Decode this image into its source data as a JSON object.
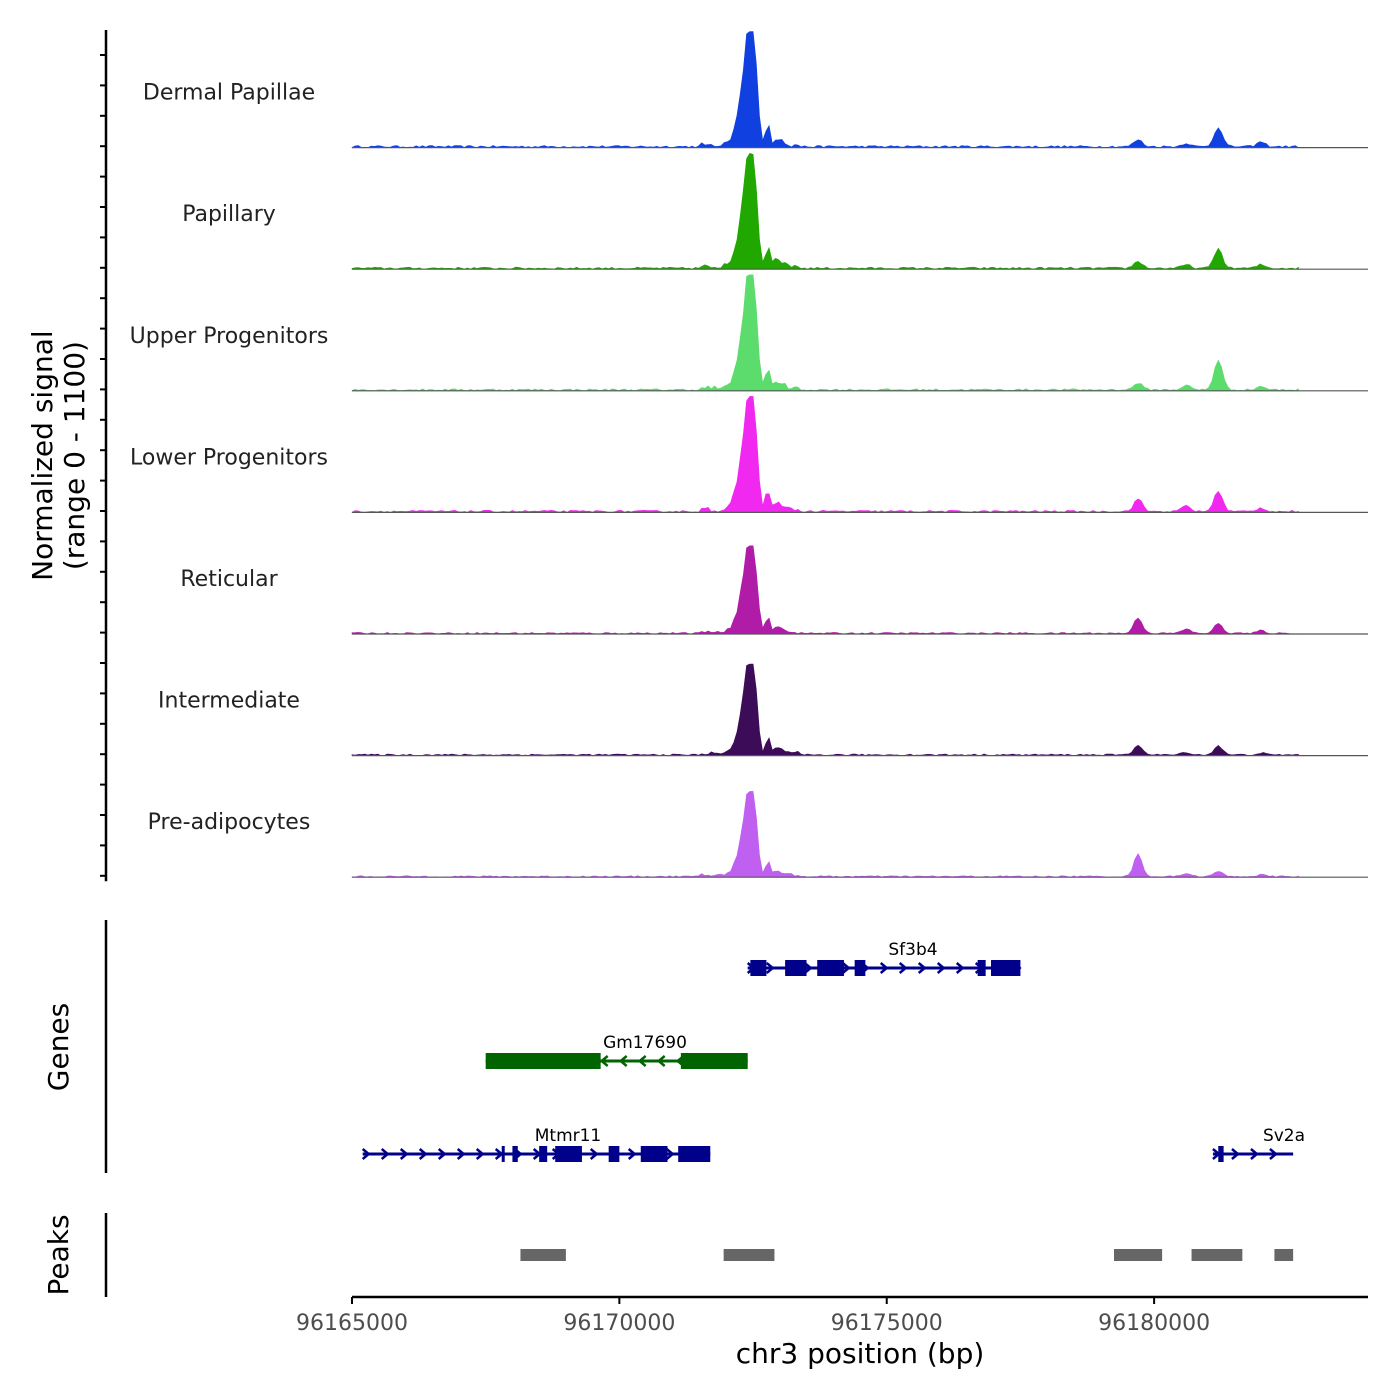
{
  "chart_data": {
    "type": "area",
    "title": "",
    "xlabel": "chr3 position (bp)",
    "ylabel_line1": "Normalized signal",
    "ylabel_line2": "(range 0 - 1100)",
    "xlim": [
      96165000,
      96184000
    ],
    "ylim": [
      0,
      1100
    ],
    "x_ticks": [
      96165000,
      96170000,
      96175000,
      96180000
    ],
    "x_tick_labels": [
      "96165000",
      "96170000",
      "96175000",
      "96180000"
    ],
    "peak_profile": [
      {
        "x": 96171900,
        "y": 0
      },
      {
        "x": 96172000,
        "y": 20
      },
      {
        "x": 96172100,
        "y": 60
      },
      {
        "x": 96172200,
        "y": 240
      },
      {
        "x": 96172300,
        "y": 560
      },
      {
        "x": 96172380,
        "y": 950
      },
      {
        "x": 96172450,
        "y": 1000
      },
      {
        "x": 96172520,
        "y": 980
      },
      {
        "x": 96172600,
        "y": 380
      },
      {
        "x": 96172650,
        "y": 40
      },
      {
        "x": 96172700,
        "y": 30
      },
      {
        "x": 96172780,
        "y": 200
      },
      {
        "x": 96172850,
        "y": 30
      },
      {
        "x": 96172950,
        "y": 60
      },
      {
        "x": 96173100,
        "y": 20
      },
      {
        "x": 96173200,
        "y": 0
      }
    ],
    "series": [
      {
        "name": "Dermal Papillae",
        "color": "#1040e0",
        "max": 1000,
        "minor_peaks": [
          {
            "x": 96179700,
            "h": 60
          },
          {
            "x": 96180600,
            "h": 30
          },
          {
            "x": 96181200,
            "h": 170
          },
          {
            "x": 96182000,
            "h": 40
          }
        ]
      },
      {
        "name": "Papillary",
        "color": "#20a800",
        "max": 1000,
        "minor_peaks": [
          {
            "x": 96179700,
            "h": 60
          },
          {
            "x": 96180600,
            "h": 30
          },
          {
            "x": 96181200,
            "h": 170
          },
          {
            "x": 96182000,
            "h": 30
          }
        ]
      },
      {
        "name": "Upper Progenitors",
        "color": "#5cdc6c",
        "max": 1000,
        "minor_peaks": [
          {
            "x": 96179700,
            "h": 60
          },
          {
            "x": 96180600,
            "h": 40
          },
          {
            "x": 96181200,
            "h": 260
          },
          {
            "x": 96182000,
            "h": 30
          }
        ]
      },
      {
        "name": "Lower Progenitors",
        "color": "#f028f0",
        "max": 1000,
        "minor_peaks": [
          {
            "x": 96179700,
            "h": 110
          },
          {
            "x": 96180600,
            "h": 50
          },
          {
            "x": 96181200,
            "h": 180
          },
          {
            "x": 96182000,
            "h": 30
          }
        ]
      },
      {
        "name": "Reticular",
        "color": "#b01ca8",
        "max": 760,
        "minor_peaks": [
          {
            "x": 96179700,
            "h": 180
          },
          {
            "x": 96180600,
            "h": 50
          },
          {
            "x": 96181200,
            "h": 110
          },
          {
            "x": 96182000,
            "h": 30
          }
        ]
      },
      {
        "name": "Intermediate",
        "color": "#3c0c58",
        "max": 790,
        "minor_peaks": [
          {
            "x": 96179700,
            "h": 110
          },
          {
            "x": 96180600,
            "h": 30
          },
          {
            "x": 96181200,
            "h": 100
          },
          {
            "x": 96182000,
            "h": 20
          }
        ]
      },
      {
        "name": "Pre-adipocytes",
        "color": "#c060f0",
        "max": 740,
        "minor_peaks": [
          {
            "x": 96179700,
            "h": 260
          },
          {
            "x": 96180600,
            "h": 40
          },
          {
            "x": 96181200,
            "h": 60
          },
          {
            "x": 96182000,
            "h": 20
          }
        ]
      }
    ],
    "genes_label": "Genes",
    "genes": [
      {
        "name": "Sf3b4",
        "strand": "+",
        "color": "#00008b",
        "row": 0,
        "start": 96172400,
        "end": 96177500,
        "exons": [
          [
            96172450,
            96172750
          ],
          [
            96173100,
            96173500
          ],
          [
            96173700,
            96174200
          ],
          [
            96174400,
            96174600
          ],
          [
            96176700,
            96176850
          ],
          [
            96176950,
            96177500
          ]
        ]
      },
      {
        "name": "Gm17690",
        "strand": "-",
        "color": "#006400",
        "row": 1,
        "start": 96167500,
        "end": 96172400,
        "exons": [
          [
            96167500,
            96169650
          ],
          [
            96171150,
            96172400
          ]
        ]
      },
      {
        "name": "Mtmr11",
        "strand": "+",
        "color": "#00008b",
        "row": 2,
        "start": 96165200,
        "end": 96171700,
        "exons": [
          [
            96167800,
            96167850
          ],
          [
            96168000,
            96168100
          ],
          [
            96168500,
            96168650
          ],
          [
            96168800,
            96169300
          ],
          [
            96169800,
            96170000
          ],
          [
            96170400,
            96170900
          ],
          [
            96171100,
            96171700
          ]
        ]
      },
      {
        "name": "Sv2a",
        "strand": "+",
        "color": "#00008b",
        "row": 2,
        "start": 96181100,
        "end": 96182600,
        "exons": [
          [
            96181200,
            96181300
          ]
        ]
      }
    ],
    "peaks_label": "Peaks",
    "peak_color": "#666666",
    "peaks": [
      [
        96168150,
        96169000
      ],
      [
        96171950,
        96172900
      ],
      [
        96179250,
        96180150
      ],
      [
        96180700,
        96181650
      ],
      [
        96182250,
        96182600
      ]
    ]
  }
}
